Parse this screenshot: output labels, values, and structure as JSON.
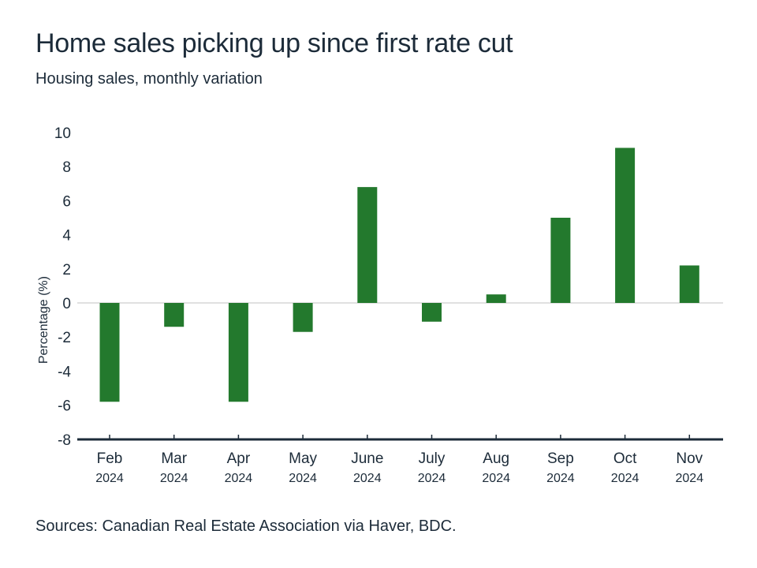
{
  "chart_data": {
    "type": "bar",
    "title": "Home sales picking up since first rate cut",
    "subtitle": "Housing sales, monthly variation",
    "ylabel": "Percentage (%)",
    "xlabel": "",
    "categories": [
      "Feb",
      "Mar",
      "Apr",
      "May",
      "June",
      "July",
      "Aug",
      "Sep",
      "Oct",
      "Nov"
    ],
    "category_years": [
      "2024",
      "2024",
      "2024",
      "2024",
      "2024",
      "2024",
      "2024",
      "2024",
      "2024",
      "2024"
    ],
    "values": [
      -5.8,
      -1.4,
      -5.8,
      -1.7,
      6.8,
      -1.1,
      0.5,
      5.0,
      9.1,
      2.2
    ],
    "ylim": [
      -8,
      10
    ],
    "yticks": [
      "10",
      "8",
      "6",
      "4",
      "2",
      "0",
      "-2",
      "-4",
      "-6",
      "-8"
    ],
    "grid": false,
    "zero_line": true,
    "legend": "none",
    "bar_color": "#23792d",
    "axis_color": "#1c2b39",
    "source": "Sources: Canadian Real Estate Association via Haver, BDC."
  }
}
